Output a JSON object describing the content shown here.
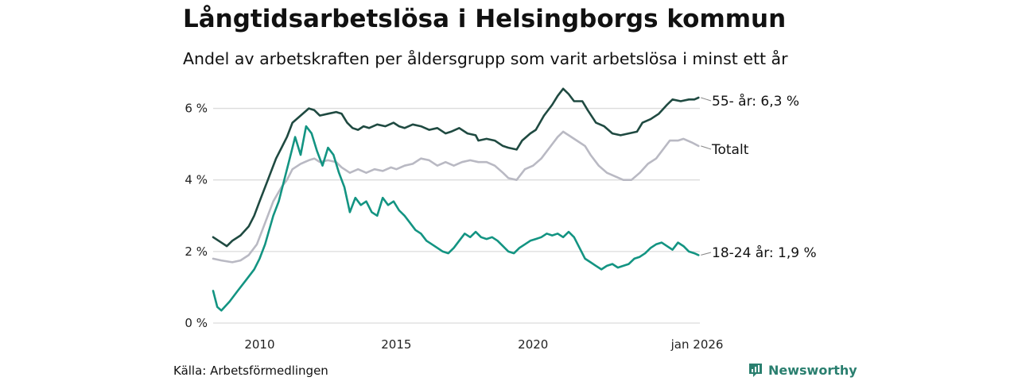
{
  "title": "Långtidsarbetslösa i Helsingborgs kommun",
  "subtitle": "Andel av arbetskraften per åldersgrupp som varit arbetslösa i minst ett år",
  "source": "Källa: Arbetsförmedlingen",
  "brand": "Newsworthy",
  "colors": {
    "older": "#1f4a41",
    "total": "#b9b9c3",
    "young": "#139482",
    "grid": "#dcdcdc",
    "brand": "#2a7f6f"
  },
  "chart_data": {
    "type": "line",
    "title": "Långtidsarbetslösa i Helsingborgs kommun",
    "xlabel": "",
    "ylabel": "",
    "xlim": [
      2008.3,
      2026.1
    ],
    "ylim": [
      0,
      6.7
    ],
    "y_ticks": [
      0,
      2,
      4,
      6
    ],
    "y_tick_labels": [
      "0 %",
      "2 %",
      "4 %",
      "6 %"
    ],
    "x_ticks": [
      2010,
      2015,
      2020,
      2026
    ],
    "x_tick_labels": [
      "2010",
      "2015",
      "2020",
      "jan 2026"
    ],
    "series": [
      {
        "name": "55- år",
        "end_label": "55- år: 6,3 %",
        "color": "#1f4a41",
        "points": [
          [
            2008.3,
            2.4
          ],
          [
            2008.6,
            2.25
          ],
          [
            2008.8,
            2.15
          ],
          [
            2009.0,
            2.3
          ],
          [
            2009.3,
            2.45
          ],
          [
            2009.6,
            2.7
          ],
          [
            2009.8,
            3.0
          ],
          [
            2010.0,
            3.4
          ],
          [
            2010.3,
            4.0
          ],
          [
            2010.6,
            4.6
          ],
          [
            2010.8,
            4.9
          ],
          [
            2011.0,
            5.2
          ],
          [
            2011.2,
            5.6
          ],
          [
            2011.5,
            5.8
          ],
          [
            2011.8,
            6.0
          ],
          [
            2012.0,
            5.95
          ],
          [
            2012.2,
            5.8
          ],
          [
            2012.5,
            5.85
          ],
          [
            2012.8,
            5.9
          ],
          [
            2013.0,
            5.85
          ],
          [
            2013.2,
            5.6
          ],
          [
            2013.4,
            5.45
          ],
          [
            2013.6,
            5.4
          ],
          [
            2013.8,
            5.5
          ],
          [
            2014.0,
            5.45
          ],
          [
            2014.3,
            5.55
          ],
          [
            2014.6,
            5.5
          ],
          [
            2014.9,
            5.6
          ],
          [
            2015.1,
            5.5
          ],
          [
            2015.3,
            5.45
          ],
          [
            2015.6,
            5.55
          ],
          [
            2015.9,
            5.5
          ],
          [
            2016.2,
            5.4
          ],
          [
            2016.5,
            5.45
          ],
          [
            2016.8,
            5.3
          ],
          [
            2017.0,
            5.35
          ],
          [
            2017.3,
            5.45
          ],
          [
            2017.6,
            5.3
          ],
          [
            2017.9,
            5.25
          ],
          [
            2018.0,
            5.1
          ],
          [
            2018.3,
            5.15
          ],
          [
            2018.6,
            5.1
          ],
          [
            2018.9,
            4.95
          ],
          [
            2019.1,
            4.9
          ],
          [
            2019.4,
            4.85
          ],
          [
            2019.6,
            5.1
          ],
          [
            2019.9,
            5.3
          ],
          [
            2020.1,
            5.4
          ],
          [
            2020.4,
            5.8
          ],
          [
            2020.7,
            6.1
          ],
          [
            2020.9,
            6.35
          ],
          [
            2021.1,
            6.55
          ],
          [
            2021.3,
            6.4
          ],
          [
            2021.5,
            6.2
          ],
          [
            2021.8,
            6.2
          ],
          [
            2022.0,
            5.95
          ],
          [
            2022.3,
            5.6
          ],
          [
            2022.6,
            5.5
          ],
          [
            2022.9,
            5.3
          ],
          [
            2023.2,
            5.25
          ],
          [
            2023.5,
            5.3
          ],
          [
            2023.8,
            5.35
          ],
          [
            2024.0,
            5.6
          ],
          [
            2024.3,
            5.7
          ],
          [
            2024.6,
            5.85
          ],
          [
            2024.9,
            6.1
          ],
          [
            2025.1,
            6.25
          ],
          [
            2025.4,
            6.2
          ],
          [
            2025.7,
            6.25
          ],
          [
            2025.9,
            6.25
          ],
          [
            2026.05,
            6.3
          ]
        ]
      },
      {
        "name": "Totalt",
        "end_label": "Totalt",
        "color": "#b9b9c3",
        "points": [
          [
            2008.3,
            1.8
          ],
          [
            2008.6,
            1.75
          ],
          [
            2009.0,
            1.7
          ],
          [
            2009.3,
            1.75
          ],
          [
            2009.6,
            1.9
          ],
          [
            2009.9,
            2.2
          ],
          [
            2010.2,
            2.8
          ],
          [
            2010.5,
            3.4
          ],
          [
            2010.8,
            3.8
          ],
          [
            2011.0,
            4.0
          ],
          [
            2011.2,
            4.3
          ],
          [
            2011.5,
            4.45
          ],
          [
            2011.8,
            4.55
          ],
          [
            2012.0,
            4.6
          ],
          [
            2012.2,
            4.5
          ],
          [
            2012.5,
            4.55
          ],
          [
            2012.8,
            4.5
          ],
          [
            2013.0,
            4.35
          ],
          [
            2013.3,
            4.2
          ],
          [
            2013.6,
            4.3
          ],
          [
            2013.9,
            4.2
          ],
          [
            2014.2,
            4.3
          ],
          [
            2014.5,
            4.25
          ],
          [
            2014.8,
            4.35
          ],
          [
            2015.0,
            4.3
          ],
          [
            2015.3,
            4.4
          ],
          [
            2015.6,
            4.45
          ],
          [
            2015.9,
            4.6
          ],
          [
            2016.2,
            4.55
          ],
          [
            2016.5,
            4.4
          ],
          [
            2016.8,
            4.5
          ],
          [
            2017.1,
            4.4
          ],
          [
            2017.4,
            4.5
          ],
          [
            2017.7,
            4.55
          ],
          [
            2018.0,
            4.5
          ],
          [
            2018.3,
            4.5
          ],
          [
            2018.6,
            4.4
          ],
          [
            2018.9,
            4.2
          ],
          [
            2019.1,
            4.05
          ],
          [
            2019.4,
            4.0
          ],
          [
            2019.7,
            4.3
          ],
          [
            2020.0,
            4.4
          ],
          [
            2020.3,
            4.6
          ],
          [
            2020.6,
            4.9
          ],
          [
            2020.9,
            5.2
          ],
          [
            2021.1,
            5.35
          ],
          [
            2021.3,
            5.25
          ],
          [
            2021.6,
            5.1
          ],
          [
            2021.9,
            4.95
          ],
          [
            2022.1,
            4.7
          ],
          [
            2022.4,
            4.4
          ],
          [
            2022.7,
            4.2
          ],
          [
            2023.0,
            4.1
          ],
          [
            2023.3,
            4.0
          ],
          [
            2023.6,
            4.0
          ],
          [
            2023.9,
            4.2
          ],
          [
            2024.2,
            4.45
          ],
          [
            2024.5,
            4.6
          ],
          [
            2024.8,
            4.9
          ],
          [
            2025.0,
            5.1
          ],
          [
            2025.3,
            5.1
          ],
          [
            2025.5,
            5.15
          ],
          [
            2025.8,
            5.05
          ],
          [
            2026.05,
            4.95
          ]
        ]
      },
      {
        "name": "18-24 år",
        "end_label": "18-24 år: 1,9 %",
        "color": "#139482",
        "points": [
          [
            2008.3,
            0.9
          ],
          [
            2008.45,
            0.45
          ],
          [
            2008.6,
            0.35
          ],
          [
            2008.9,
            0.6
          ],
          [
            2009.2,
            0.9
          ],
          [
            2009.5,
            1.2
          ],
          [
            2009.8,
            1.5
          ],
          [
            2010.0,
            1.8
          ],
          [
            2010.2,
            2.2
          ],
          [
            2010.5,
            3.0
          ],
          [
            2010.7,
            3.4
          ],
          [
            2010.9,
            4.0
          ],
          [
            2011.1,
            4.6
          ],
          [
            2011.3,
            5.2
          ],
          [
            2011.5,
            4.7
          ],
          [
            2011.7,
            5.5
          ],
          [
            2011.9,
            5.3
          ],
          [
            2012.1,
            4.8
          ],
          [
            2012.3,
            4.4
          ],
          [
            2012.5,
            4.9
          ],
          [
            2012.7,
            4.7
          ],
          [
            2012.9,
            4.2
          ],
          [
            2013.1,
            3.8
          ],
          [
            2013.3,
            3.1
          ],
          [
            2013.5,
            3.5
          ],
          [
            2013.7,
            3.3
          ],
          [
            2013.9,
            3.4
          ],
          [
            2014.1,
            3.1
          ],
          [
            2014.3,
            3.0
          ],
          [
            2014.5,
            3.5
          ],
          [
            2014.7,
            3.3
          ],
          [
            2014.9,
            3.4
          ],
          [
            2015.1,
            3.15
          ],
          [
            2015.3,
            3.0
          ],
          [
            2015.5,
            2.8
          ],
          [
            2015.7,
            2.6
          ],
          [
            2015.9,
            2.5
          ],
          [
            2016.1,
            2.3
          ],
          [
            2016.3,
            2.2
          ],
          [
            2016.5,
            2.1
          ],
          [
            2016.7,
            2.0
          ],
          [
            2016.9,
            1.95
          ],
          [
            2017.1,
            2.1
          ],
          [
            2017.3,
            2.3
          ],
          [
            2017.5,
            2.5
          ],
          [
            2017.7,
            2.4
          ],
          [
            2017.9,
            2.55
          ],
          [
            2018.1,
            2.4
          ],
          [
            2018.3,
            2.35
          ],
          [
            2018.5,
            2.4
          ],
          [
            2018.7,
            2.3
          ],
          [
            2018.9,
            2.15
          ],
          [
            2019.1,
            2.0
          ],
          [
            2019.3,
            1.95
          ],
          [
            2019.5,
            2.1
          ],
          [
            2019.7,
            2.2
          ],
          [
            2019.9,
            2.3
          ],
          [
            2020.1,
            2.35
          ],
          [
            2020.3,
            2.4
          ],
          [
            2020.5,
            2.5
          ],
          [
            2020.7,
            2.45
          ],
          [
            2020.9,
            2.5
          ],
          [
            2021.1,
            2.4
          ],
          [
            2021.3,
            2.55
          ],
          [
            2021.5,
            2.4
          ],
          [
            2021.7,
            2.1
          ],
          [
            2021.9,
            1.8
          ],
          [
            2022.1,
            1.7
          ],
          [
            2022.3,
            1.6
          ],
          [
            2022.5,
            1.5
          ],
          [
            2022.7,
            1.6
          ],
          [
            2022.9,
            1.65
          ],
          [
            2023.1,
            1.55
          ],
          [
            2023.3,
            1.6
          ],
          [
            2023.5,
            1.65
          ],
          [
            2023.7,
            1.8
          ],
          [
            2023.9,
            1.85
          ],
          [
            2024.1,
            1.95
          ],
          [
            2024.3,
            2.1
          ],
          [
            2024.5,
            2.2
          ],
          [
            2024.7,
            2.25
          ],
          [
            2024.9,
            2.15
          ],
          [
            2025.1,
            2.05
          ],
          [
            2025.3,
            2.25
          ],
          [
            2025.5,
            2.15
          ],
          [
            2025.7,
            2.0
          ],
          [
            2025.9,
            1.95
          ],
          [
            2026.05,
            1.9
          ]
        ]
      }
    ]
  }
}
